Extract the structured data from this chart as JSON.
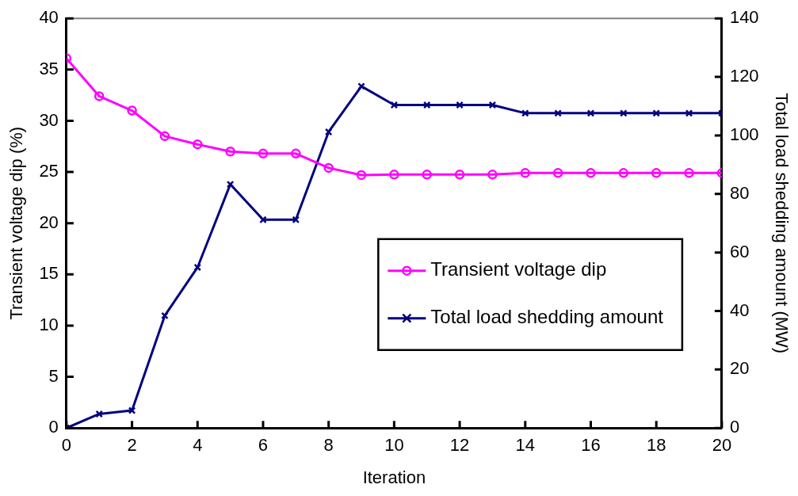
{
  "chart_data": {
    "type": "line",
    "xlabel": "Iteration",
    "ylabel": "Transient voltage dip (%)",
    "y2label": "Total load shedding amount (MW)",
    "x": [
      0,
      1,
      2,
      3,
      4,
      5,
      6,
      7,
      8,
      9,
      10,
      11,
      12,
      13,
      14,
      15,
      16,
      17,
      18,
      19,
      20
    ],
    "xlim": [
      0,
      20
    ],
    "xticks": [
      0,
      2,
      4,
      6,
      8,
      10,
      12,
      14,
      16,
      18,
      20
    ],
    "ylim": [
      0,
      40
    ],
    "yticks": [
      0,
      5,
      10,
      15,
      20,
      25,
      30,
      35,
      40
    ],
    "y2lim": [
      0,
      140
    ],
    "y2ticks": [
      0,
      20,
      40,
      60,
      80,
      100,
      120,
      140
    ],
    "legend": "right",
    "grid": false,
    "series": [
      {
        "name": "Transient voltage dip",
        "color": "#ff00ff",
        "marker": "circle",
        "values": [
          36.1,
          32.4,
          31.0,
          28.5,
          27.7,
          27.0,
          26.8,
          26.8,
          25.4,
          24.7,
          24.75,
          24.75,
          24.75,
          24.75,
          24.9,
          24.9,
          24.9,
          24.9,
          24.9,
          24.9,
          24.9
        ]
      },
      {
        "name": "Total load shedding amount",
        "color": "#000080",
        "marker": "cross",
        "axis": "y2",
        "values": [
          0,
          4.8,
          6.0,
          38.4,
          54.9,
          83.3,
          71.2,
          71.2,
          101.2,
          116.8,
          110.4,
          110.4,
          110.4,
          110.4,
          107.6,
          107.6,
          107.6,
          107.6,
          107.6,
          107.6,
          107.6
        ]
      }
    ]
  }
}
